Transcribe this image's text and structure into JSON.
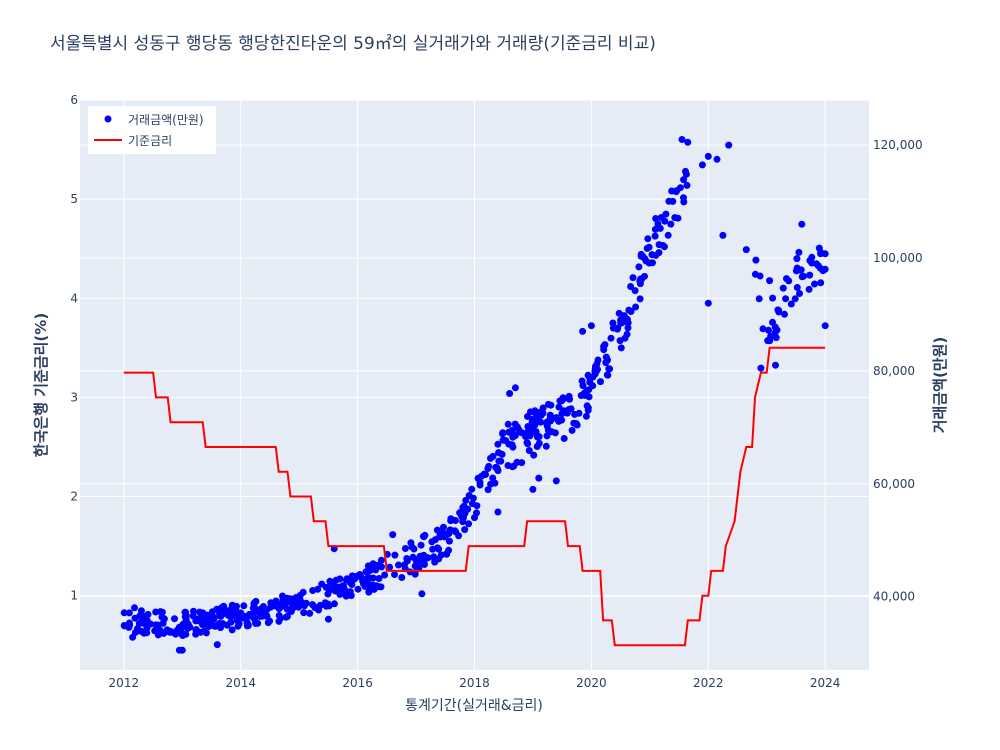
{
  "chart_data": {
    "type": "scatter",
    "title": "서울특별시 성동구 행당동 행당한진타운의 59㎡의 실거래가와 거래량(기준금리 비교)",
    "xlabel": "통계기간(실거래&금리)",
    "ylabel_left": "한국은행 기준금리(%)",
    "ylabel_right": "거래금액(만원)",
    "x_ticks": [
      "2012",
      "2014",
      "2016",
      "2018",
      "2020",
      "2022",
      "2024"
    ],
    "x_range": [
      2011.25,
      2024.75
    ],
    "y_left_ticks": [
      "1",
      "2",
      "3",
      "4",
      "5",
      "6"
    ],
    "y_left_range": [
      0.25,
      6.0
    ],
    "y_right_ticks": [
      "40,000",
      "60,000",
      "80,000",
      "100,000",
      "120,000"
    ],
    "y_right_range": [
      27000,
      128000
    ],
    "grid": true,
    "legend_position": "top-left",
    "colors": {
      "transactions": "#0000ff",
      "base_rate": "#ff0000",
      "plot_bg": "#e5ecf6"
    },
    "series": [
      {
        "name": "거래금액(만원)",
        "axis": "right",
        "mode": "markers",
        "anchors": [
          [
            2012.0,
            36000
          ],
          [
            2012.5,
            35500
          ],
          [
            2013.0,
            35000
          ],
          [
            2013.5,
            35800
          ],
          [
            2014.0,
            36500
          ],
          [
            2014.5,
            37500
          ],
          [
            2015.0,
            38500
          ],
          [
            2015.5,
            40500
          ],
          [
            2016.0,
            42500
          ],
          [
            2016.5,
            45000
          ],
          [
            2017.0,
            47000
          ],
          [
            2017.5,
            50000
          ],
          [
            2018.0,
            57000
          ],
          [
            2018.5,
            66000
          ],
          [
            2019.0,
            69000
          ],
          [
            2019.5,
            71500
          ],
          [
            2020.0,
            77000
          ],
          [
            2020.5,
            87000
          ],
          [
            2021.0,
            101000
          ],
          [
            2021.5,
            111000
          ],
          [
            2021.75,
            116000
          ],
          [
            2022.0,
            119000
          ],
          [
            2022.35,
            121000
          ],
          [
            2023.0,
            87000
          ],
          [
            2023.5,
            96000
          ],
          [
            2024.0,
            98000
          ]
        ],
        "highlighted_points": [
          [
            2021.55,
            121000
          ],
          [
            2021.65,
            120500
          ],
          [
            2022.35,
            120000
          ],
          [
            2022.0,
            118000
          ],
          [
            2022.15,
            117500
          ],
          [
            2021.9,
            116500
          ],
          [
            2022.25,
            104000
          ],
          [
            2022.65,
            101500
          ],
          [
            2022.0,
            92000
          ],
          [
            2022.9,
            80500
          ],
          [
            2023.15,
            81000
          ],
          [
            2023.05,
            96000
          ],
          [
            2023.6,
            106000
          ],
          [
            2023.55,
            101000
          ],
          [
            2023.85,
            99000
          ],
          [
            2024.0,
            98000
          ],
          [
            2024.0,
            88000
          ],
          [
            2021.25,
            102000
          ],
          [
            2021.1,
            107000
          ],
          [
            2020.5,
            89000
          ],
          [
            2020.0,
            88000
          ],
          [
            2019.85,
            87000
          ],
          [
            2018.4,
            67000
          ],
          [
            2018.7,
            77000
          ],
          [
            2018.6,
            76000
          ],
          [
            2018.45,
            64000
          ],
          [
            2018.65,
            63000
          ],
          [
            2018.4,
            55000
          ],
          [
            2018.0,
            54000
          ],
          [
            2019.0,
            59000
          ],
          [
            2019.1,
            61000
          ],
          [
            2019.4,
            60500
          ],
          [
            2017.1,
            40500
          ],
          [
            2016.6,
            51000
          ],
          [
            2015.6,
            48500
          ],
          [
            2015.5,
            36000
          ],
          [
            2014.8,
            36500
          ],
          [
            2013.6,
            31500
          ],
          [
            2012.95,
            30500
          ],
          [
            2013.0,
            30500
          ],
          [
            2012.15,
            32800
          ],
          [
            2012.3,
            37500
          ],
          [
            2012.55,
            35000
          ]
        ]
      },
      {
        "name": "기준금리",
        "axis": "left",
        "mode": "line",
        "points": [
          [
            2012.0,
            3.25
          ],
          [
            2012.5,
            3.25
          ],
          [
            2012.55,
            3.0
          ],
          [
            2012.75,
            3.0
          ],
          [
            2012.8,
            2.75
          ],
          [
            2013.35,
            2.75
          ],
          [
            2013.4,
            2.5
          ],
          [
            2014.6,
            2.5
          ],
          [
            2014.65,
            2.25
          ],
          [
            2014.8,
            2.25
          ],
          [
            2014.85,
            2.0
          ],
          [
            2015.2,
            2.0
          ],
          [
            2015.25,
            1.75
          ],
          [
            2015.45,
            1.75
          ],
          [
            2015.5,
            1.5
          ],
          [
            2016.45,
            1.5
          ],
          [
            2016.5,
            1.25
          ],
          [
            2017.85,
            1.25
          ],
          [
            2017.9,
            1.5
          ],
          [
            2018.85,
            1.5
          ],
          [
            2018.9,
            1.75
          ],
          [
            2019.55,
            1.75
          ],
          [
            2019.6,
            1.5
          ],
          [
            2019.8,
            1.5
          ],
          [
            2019.85,
            1.25
          ],
          [
            2020.15,
            1.25
          ],
          [
            2020.2,
            0.75
          ],
          [
            2020.35,
            0.75
          ],
          [
            2020.4,
            0.5
          ],
          [
            2021.6,
            0.5
          ],
          [
            2021.65,
            0.75
          ],
          [
            2021.85,
            0.75
          ],
          [
            2021.9,
            1.0
          ],
          [
            2022.0,
            1.0
          ],
          [
            2022.05,
            1.25
          ],
          [
            2022.25,
            1.25
          ],
          [
            2022.3,
            1.5
          ],
          [
            2022.45,
            1.75
          ],
          [
            2022.55,
            2.25
          ],
          [
            2022.65,
            2.5
          ],
          [
            2022.75,
            2.5
          ],
          [
            2022.8,
            3.0
          ],
          [
            2022.9,
            3.25
          ],
          [
            2023.0,
            3.25
          ],
          [
            2023.05,
            3.5
          ],
          [
            2024.0,
            3.5
          ]
        ]
      }
    ]
  }
}
